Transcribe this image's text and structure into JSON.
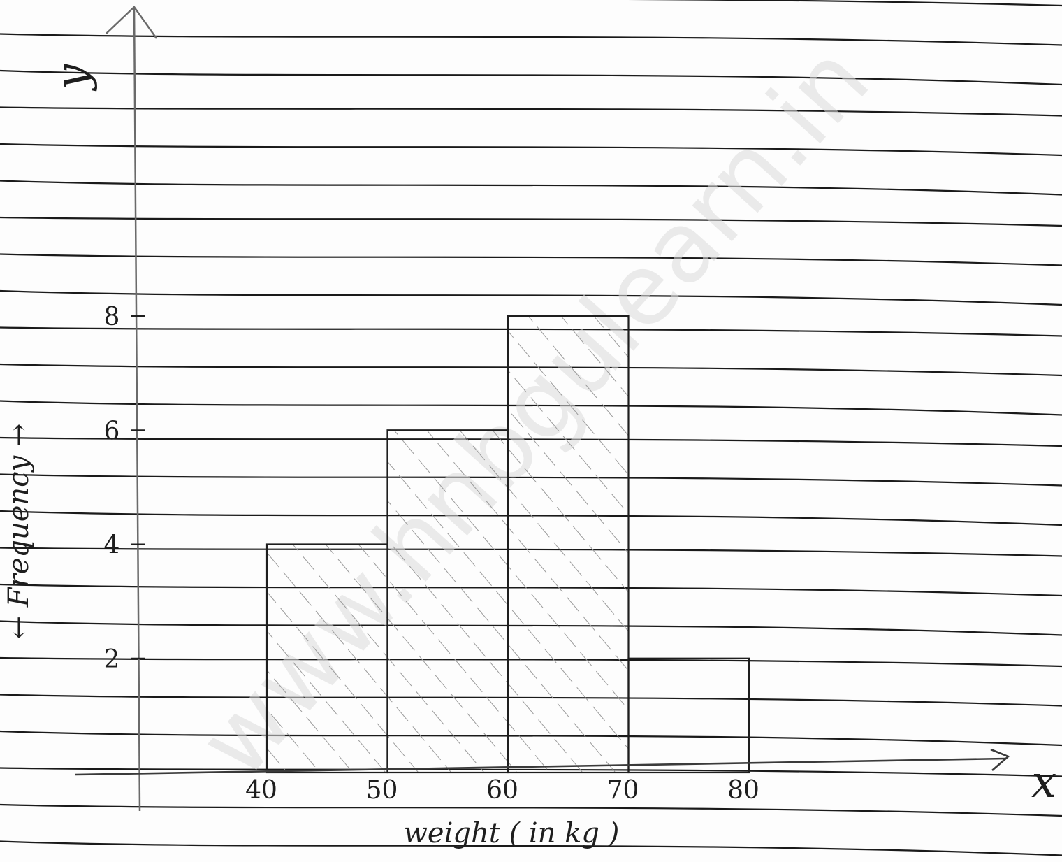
{
  "chart_data": {
    "type": "bar",
    "bins": [
      {
        "from": 40,
        "to": 50,
        "value": 4
      },
      {
        "from": 50,
        "to": 60,
        "value": 6
      },
      {
        "from": 60,
        "to": 70,
        "value": 8
      },
      {
        "from": 70,
        "to": 80,
        "value": 2
      }
    ],
    "x_tick_labels": [
      "40",
      "50",
      "60",
      "70",
      "80"
    ],
    "y_tick_labels": [
      "2",
      "4",
      "6",
      "8"
    ],
    "x_axis_letter": "x",
    "y_axis_letter": "y",
    "xlabel": "weight ( in kg )",
    "ylabel": "← Frequency →",
    "xlim": [
      40,
      80
    ],
    "ylim": [
      0,
      8
    ],
    "grid": false,
    "hatched_bars": [
      0,
      1,
      2
    ]
  },
  "watermark": "www.hnbgulearn.in",
  "colors": {
    "ink": "#1e1e1e",
    "ruled_line": "#1a1a1a",
    "hatch": "#9a9a9a",
    "watermark": "#dcdcdc"
  }
}
